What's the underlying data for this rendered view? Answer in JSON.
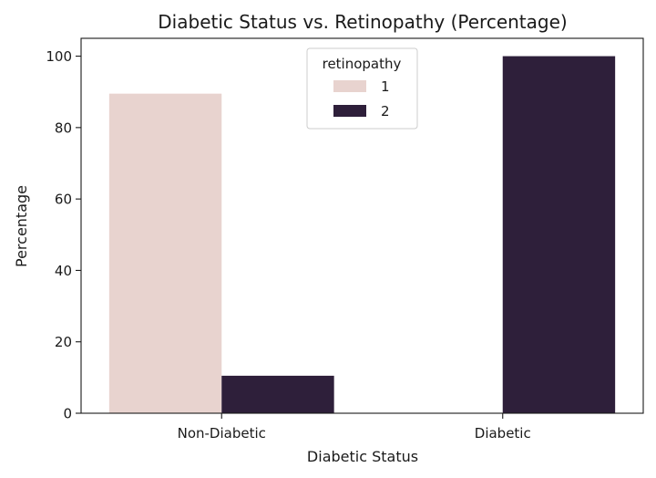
{
  "chart_data": {
    "type": "bar",
    "title": "Diabetic Status vs. Retinopathy (Percentage)",
    "xlabel": "Diabetic Status",
    "ylabel": "Percentage",
    "categories": [
      "Non-Diabetic",
      "Diabetic"
    ],
    "ylim": [
      0,
      105
    ],
    "yticks": [
      0,
      20,
      40,
      60,
      80,
      100
    ],
    "grid": false,
    "legend": {
      "title": "retinopathy",
      "placement": "upper-center"
    },
    "series": [
      {
        "name": "1",
        "values": [
          89.5,
          0
        ],
        "color": "#e8d3cf"
      },
      {
        "name": "2",
        "values": [
          10.5,
          100
        ],
        "color": "#2e1f3a"
      }
    ]
  }
}
